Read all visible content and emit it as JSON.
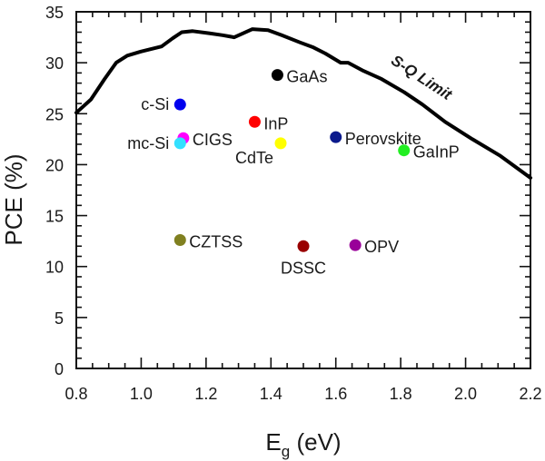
{
  "chart_data": {
    "type": "scatter",
    "title": "",
    "xlabel": "E",
    "xlabel_subscript": "g",
    "xlabel_unit": " (eV)",
    "ylabel": "PCE (%)",
    "xlim": [
      0.8,
      2.2
    ],
    "ylim": [
      0,
      35
    ],
    "x_major_ticks": [
      0.8,
      1.0,
      1.2,
      1.4,
      1.6,
      1.8,
      2.0,
      2.2
    ],
    "x_tick_labels": [
      "0.8",
      "1.0",
      "1.2",
      "1.4",
      "1.6",
      "1.8",
      "2.0",
      "2.2"
    ],
    "x_minor_step": 0.05,
    "y_major_ticks": [
      0,
      5,
      10,
      15,
      20,
      25,
      30,
      35
    ],
    "y_tick_labels": [
      "0",
      "5",
      "10",
      "15",
      "20",
      "25",
      "30",
      "35"
    ],
    "y_minor_step": 1,
    "grid": false,
    "curve": {
      "name": "S-Q Limit",
      "label": "S-Q Limit",
      "color": "#000000",
      "x": [
        0.8,
        0.845,
        0.887,
        0.923,
        0.957,
        0.999,
        1.063,
        1.097,
        1.125,
        1.159,
        1.209,
        1.251,
        1.287,
        1.315,
        1.343,
        1.391,
        1.433,
        1.489,
        1.531,
        1.568,
        1.615,
        1.638,
        1.685,
        1.741,
        1.811,
        1.867,
        1.937,
        2.021,
        2.105,
        2.2
      ],
      "y": [
        25.1,
        26.4,
        28.4,
        30.0,
        30.7,
        31.1,
        31.6,
        32.4,
        33.0,
        33.1,
        32.9,
        32.7,
        32.5,
        32.9,
        33.3,
        33.2,
        32.7,
        32.0,
        31.5,
        30.9,
        30.0,
        30.0,
        29.2,
        28.4,
        27.1,
        25.9,
        24.2,
        22.5,
        20.9,
        18.7
      ]
    },
    "points": [
      {
        "name": "c-Si",
        "x": 1.12,
        "y": 25.9,
        "color": "#0000ee",
        "label_pos": "left"
      },
      {
        "name": "CIGS",
        "x": 1.13,
        "y": 22.6,
        "color": "#ff00ff",
        "label_pos": "right"
      },
      {
        "name": "mc-Si",
        "x": 1.12,
        "y": 22.1,
        "color": "#33e0ff",
        "label_pos": "left"
      },
      {
        "name": "InP",
        "x": 1.35,
        "y": 24.2,
        "color": "#ff0000",
        "label_pos": "right"
      },
      {
        "name": "CdTe",
        "x": 1.43,
        "y": 22.1,
        "color": "#ffff00",
        "label_pos": "below-left"
      },
      {
        "name": "GaAs",
        "x": 1.42,
        "y": 28.8,
        "color": "#000000",
        "label_pos": "right"
      },
      {
        "name": "Perovskite",
        "x": 1.6,
        "y": 22.7,
        "color": "#0b1a8c",
        "label_pos": "right"
      },
      {
        "name": "GaInP",
        "x": 1.81,
        "y": 21.4,
        "color": "#22ee22",
        "label_pos": "right"
      },
      {
        "name": "CZTSS",
        "x": 1.12,
        "y": 12.6,
        "color": "#808020",
        "label_pos": "right"
      },
      {
        "name": "DSSC",
        "x": 1.5,
        "y": 12.0,
        "color": "#990000",
        "label_pos": "below"
      },
      {
        "name": "OPV",
        "x": 1.66,
        "y": 12.1,
        "color": "#990099",
        "label_pos": "right"
      }
    ]
  }
}
